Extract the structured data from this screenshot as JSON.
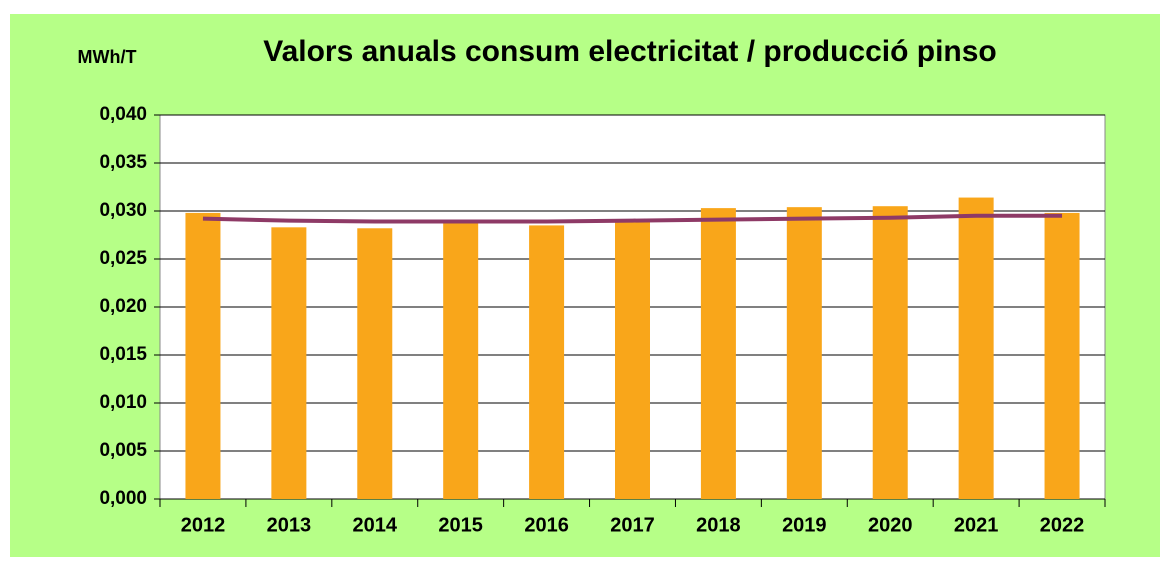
{
  "chart_data": {
    "type": "bar",
    "title": "Valors anuals consum electricitat  / producció pinso",
    "y_axis_label": "MWh/T",
    "categories": [
      "2012",
      "2013",
      "2014",
      "2015",
      "2016",
      "2017",
      "2018",
      "2019",
      "2020",
      "2021",
      "2022"
    ],
    "series": [
      {
        "type": "bar",
        "color": "#f9a61a",
        "values": [
          0.0298,
          0.0283,
          0.0282,
          0.029,
          0.0285,
          0.0289,
          0.0303,
          0.0304,
          0.0305,
          0.0314,
          0.0298
        ]
      },
      {
        "type": "line",
        "color": "#8e3a66",
        "values": [
          0.0292,
          0.029,
          0.0289,
          0.0289,
          0.0289,
          0.029,
          0.0291,
          0.0292,
          0.0293,
          0.0295,
          0.0295
        ]
      }
    ],
    "ylim": [
      0,
      0.04
    ],
    "yticks": [
      {
        "value": 0,
        "label": "0,000"
      },
      {
        "value": 0.005,
        "label": "0,005"
      },
      {
        "value": 0.01,
        "label": "0,010"
      },
      {
        "value": 0.015,
        "label": "0,015"
      },
      {
        "value": 0.02,
        "label": "0,020"
      },
      {
        "value": 0.025,
        "label": "0,025"
      },
      {
        "value": 0.03,
        "label": "0,030"
      },
      {
        "value": 0.035,
        "label": "0,035"
      },
      {
        "value": 0.04,
        "label": "0,040"
      }
    ],
    "grid": true,
    "background": "#b6ff87"
  }
}
